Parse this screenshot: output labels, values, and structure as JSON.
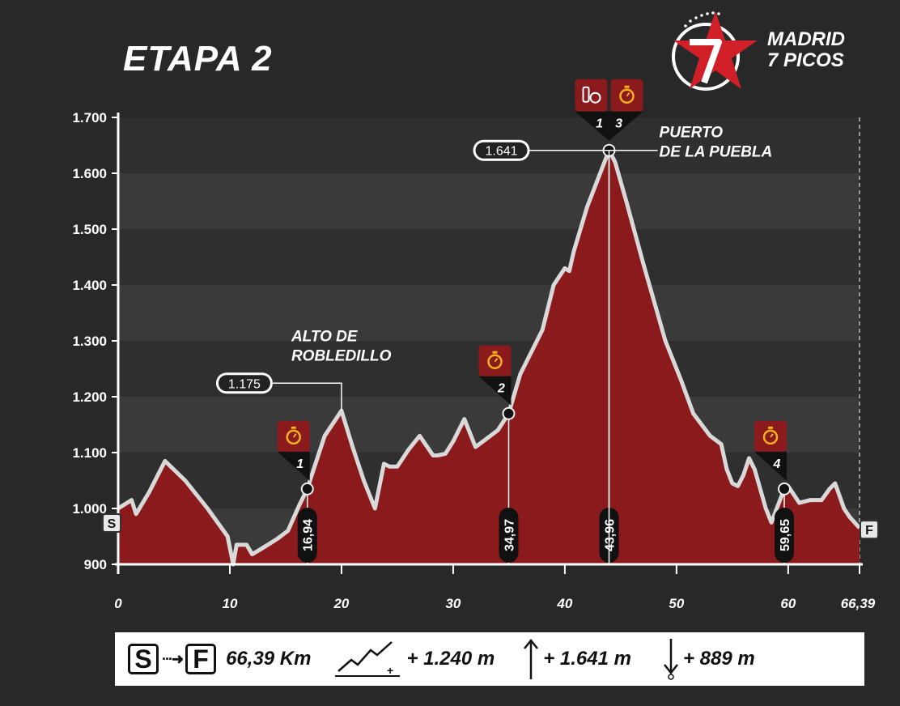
{
  "title": "ETAPA 2",
  "logo": {
    "line1": "MADRID",
    "line2": "7 PICOS",
    "icon": "star-7-logo-icon"
  },
  "colors": {
    "background": "#282828",
    "fill": "#8b1a1c",
    "line": "#d9d9d9",
    "accent": "#8b1a1c",
    "stopwatch": "#f3b020"
  },
  "chart_data": {
    "type": "area",
    "xlabel": "",
    "ylabel": "",
    "xlim": [
      0,
      66.39
    ],
    "ylim": [
      900,
      1700
    ],
    "x_ticks": [
      "0",
      "10",
      "20",
      "30",
      "40",
      "50",
      "60",
      "66,39"
    ],
    "x_tick_values": [
      0,
      10,
      20,
      30,
      40,
      50,
      60,
      66.39
    ],
    "y_ticks": [
      "900",
      "1.000",
      "1.100",
      "1.200",
      "1.300",
      "1.400",
      "1.500",
      "1.600",
      "1.700"
    ],
    "y_tick_values": [
      900,
      1000,
      1100,
      1200,
      1300,
      1400,
      1500,
      1600,
      1700
    ],
    "series": [
      {
        "x": [
          0,
          1.2,
          1.6,
          2.8,
          4.2,
          6,
          8,
          9.8,
          10.3,
          10.6,
          11.5,
          12,
          13,
          14.2,
          15.2,
          16.2,
          16.94,
          17.5,
          18.5,
          20,
          21,
          22,
          23,
          23.8,
          24.3,
          25,
          26,
          27,
          28.2,
          28.6,
          29.3,
          30,
          31,
          32,
          33,
          34,
          34.97,
          36,
          37,
          38,
          39,
          40,
          40.4,
          40.8,
          42,
          43.96,
          44.5,
          45.5,
          47,
          49,
          50.4,
          51.5,
          53,
          54,
          54.5,
          55,
          55.5,
          56,
          56.5,
          57,
          58,
          58.5,
          59.65,
          60,
          61,
          62,
          63,
          63.7,
          64.2,
          65,
          65.5,
          66.39
        ],
        "y": [
          1000,
          1015,
          990,
          1030,
          1085,
          1050,
          1000,
          950,
          900,
          935,
          935,
          918,
          930,
          945,
          960,
          1005,
          1035,
          1070,
          1130,
          1175,
          1110,
          1050,
          1000,
          1080,
          1075,
          1075,
          1105,
          1130,
          1095,
          1095,
          1098,
          1120,
          1160,
          1110,
          1125,
          1140,
          1170,
          1240,
          1280,
          1320,
          1400,
          1430,
          1425,
          1460,
          1540,
          1641,
          1620,
          1550,
          1440,
          1300,
          1230,
          1170,
          1130,
          1115,
          1070,
          1045,
          1040,
          1060,
          1090,
          1070,
          1000,
          975,
          1035,
          1040,
          1010,
          1015,
          1015,
          1035,
          1045,
          1000,
          985,
          965
        ]
      }
    ],
    "start_label": "S",
    "finish_label": "F",
    "dashed_x": [
      20,
      30,
      40,
      50,
      66.39
    ],
    "peaks": [
      {
        "name": "ALTO DE ROBLEDILLO",
        "name_line1": "ALTO DE",
        "name_line2": "ROBLEDILLO",
        "km": 20,
        "elevation": 1175,
        "elevation_label": "1.175"
      },
      {
        "name": "PUERTO DE LA PUEBLA",
        "name_line1": "PUERTO",
        "name_line2": "DE LA PUEBLA",
        "km": 43.96,
        "elevation": 1641,
        "elevation_label": "1.641"
      }
    ],
    "checkpoints": [
      {
        "number": "1",
        "km": 16.94,
        "km_label": "16,94",
        "elevation": 1035,
        "icons": [
          "stopwatch-icon"
        ]
      },
      {
        "number": "2",
        "km": 34.97,
        "km_label": "34,97",
        "elevation": 1170,
        "icons": [
          "stopwatch-icon"
        ]
      },
      {
        "number": "1",
        "number2": "3",
        "km": 43.96,
        "km_label": "43,96",
        "elevation": 1641,
        "icons": [
          "food-drink-icon",
          "stopwatch-icon"
        ]
      },
      {
        "number": "4",
        "km": 59.65,
        "km_label": "59,65",
        "elevation": 1035,
        "icons": [
          "stopwatch-icon"
        ]
      }
    ]
  },
  "summary": {
    "start": "S",
    "finish": "F",
    "distance": "66,39 Km",
    "elevation_gain": "+ 1.240 m",
    "max_altitude": "+ 1.641 m",
    "descent": "+ 889 m",
    "icons": [
      "start-finish-icon",
      "elevation-gain-icon",
      "max-altitude-icon",
      "descent-icon"
    ]
  }
}
